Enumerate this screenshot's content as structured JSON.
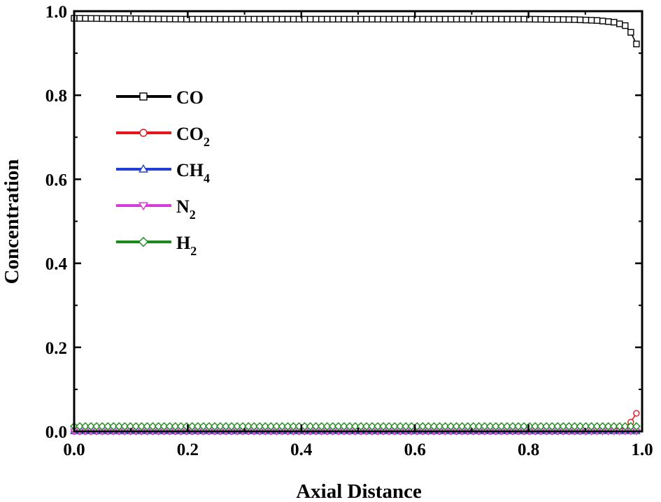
{
  "chart_data": {
    "type": "line",
    "title": "",
    "xlabel": "Axial Distance",
    "ylabel": "Concentration",
    "xlim": [
      0.0,
      1.0
    ],
    "ylim": [
      0.0,
      1.0
    ],
    "x_ticks": [
      "0.0",
      "0.2",
      "0.4",
      "0.6",
      "0.8",
      "1.0"
    ],
    "y_ticks": [
      "0.0",
      "0.2",
      "0.4",
      "0.6",
      "0.8",
      "1.0"
    ],
    "grid": false,
    "legend_position": "left",
    "series": [
      {
        "name": "CO",
        "name_base": "CO",
        "name_sub": "",
        "color": "#000000",
        "marker": "square",
        "points": [
          [
            0.0,
            0.983
          ],
          [
            0.1,
            0.982
          ],
          [
            0.2,
            0.981
          ],
          [
            0.3,
            0.981
          ],
          [
            0.4,
            0.981
          ],
          [
            0.5,
            0.981
          ],
          [
            0.6,
            0.981
          ],
          [
            0.7,
            0.981
          ],
          [
            0.8,
            0.981
          ],
          [
            0.88,
            0.98
          ],
          [
            0.92,
            0.978
          ],
          [
            0.95,
            0.974
          ],
          [
            0.97,
            0.966
          ],
          [
            0.98,
            0.95
          ],
          [
            0.99,
            0.922
          ]
        ]
      },
      {
        "name": "CO2",
        "name_base": "CO",
        "name_sub": "2",
        "color": "#e8141c",
        "marker": "circle",
        "points": [
          [
            0.0,
            0.0
          ],
          [
            0.9,
            0.0
          ],
          [
            0.95,
            0.002
          ],
          [
            0.97,
            0.01
          ],
          [
            0.98,
            0.022
          ],
          [
            0.99,
            0.043
          ]
        ]
      },
      {
        "name": "CH4",
        "name_base": "CH",
        "name_sub": "4",
        "color": "#1f3fd6",
        "marker": "triangle-up",
        "points": [
          [
            0.0,
            0.0
          ],
          [
            0.99,
            0.0
          ]
        ]
      },
      {
        "name": "N2",
        "name_base": "N",
        "name_sub": "2",
        "color": "#d63cdc",
        "marker": "triangle-down",
        "points": [
          [
            0.0,
            0.0
          ],
          [
            0.99,
            0.0
          ]
        ]
      },
      {
        "name": "H2",
        "name_base": "H",
        "name_sub": "2",
        "color": "#1a8a1a",
        "marker": "diamond",
        "points": [
          [
            0.0,
            0.012
          ],
          [
            0.99,
            0.012
          ]
        ]
      }
    ]
  }
}
